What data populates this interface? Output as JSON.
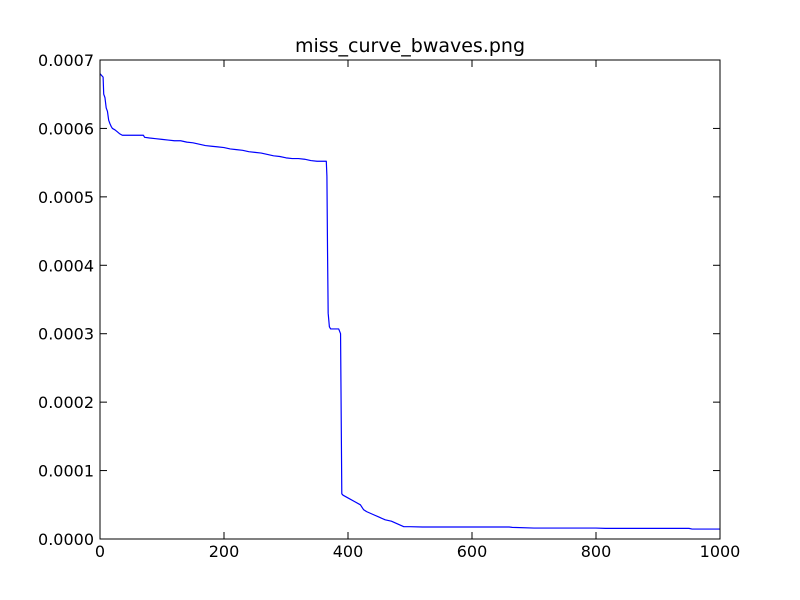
{
  "chart_data": {
    "type": "line",
    "title": "miss_curve_bwaves.png",
    "xlabel": "",
    "ylabel": "",
    "xlim": [
      0,
      1000
    ],
    "ylim": [
      0,
      0.0007
    ],
    "grid": false,
    "legend": "none",
    "x_ticks": [
      0,
      200,
      400,
      600,
      800,
      1000
    ],
    "x_tick_labels": [
      "0",
      "200",
      "400",
      "600",
      "800",
      "1000"
    ],
    "y_ticks": [
      0,
      0.0001,
      0.0002,
      0.0003,
      0.0004,
      0.0005,
      0.0006,
      0.0007
    ],
    "y_tick_labels": [
      "0.0000",
      "0.0001",
      "0.0002",
      "0.0003",
      "0.0004",
      "0.0005",
      "0.0006",
      "0.0007"
    ],
    "series": [
      {
        "color": "#0000ff",
        "x": [
          0,
          3,
          5,
          6,
          8,
          10,
          12,
          14,
          16,
          18,
          20,
          24,
          28,
          32,
          36,
          40,
          45,
          50,
          60,
          70,
          72,
          80,
          90,
          100,
          110,
          120,
          130,
          140,
          150,
          160,
          170,
          180,
          190,
          200,
          210,
          220,
          230,
          240,
          250,
          260,
          270,
          280,
          290,
          300,
          310,
          320,
          330,
          340,
          350,
          360,
          365,
          366,
          367,
          368,
          370,
          372,
          375,
          380,
          385,
          388,
          390,
          392,
          400,
          410,
          420,
          425,
          430,
          440,
          450,
          460,
          470,
          480,
          490,
          500,
          520,
          540,
          560,
          580,
          600,
          620,
          640,
          660,
          665,
          700,
          750,
          800,
          815,
          850,
          900,
          950,
          955,
          1000
        ],
        "y": [
          0.00068,
          0.000677,
          0.000675,
          0.00065,
          0.000645,
          0.00063,
          0.000625,
          0.000612,
          0.000607,
          0.000603,
          0.0006,
          0.000598,
          0.000595,
          0.000592,
          0.00059,
          0.00059,
          0.00059,
          0.00059,
          0.00059,
          0.00059,
          0.000587,
          0.000586,
          0.000585,
          0.000584,
          0.000583,
          0.000582,
          0.000582,
          0.00058,
          0.000579,
          0.000577,
          0.000575,
          0.000574,
          0.000573,
          0.000572,
          0.00057,
          0.000569,
          0.000568,
          0.000566,
          0.000565,
          0.000564,
          0.000562,
          0.00056,
          0.000559,
          0.000557,
          0.000556,
          0.000556,
          0.000555,
          0.000553,
          0.000552,
          0.000552,
          0.000552,
          0.00053,
          0.00042,
          0.00033,
          0.00031,
          0.000307,
          0.000307,
          0.000307,
          0.000307,
          0.0003,
          6.6e-05,
          6.4e-05,
          6e-05,
          5.5e-05,
          5e-05,
          4.3e-05,
          4e-05,
          3.6e-05,
          3.2e-05,
          2.8e-05,
          2.6e-05,
          2.2e-05,
          1.8e-05,
          1.8e-05,
          1.75e-05,
          1.75e-05,
          1.75e-05,
          1.75e-05,
          1.75e-05,
          1.75e-05,
          1.75e-05,
          1.75e-05,
          1.7e-05,
          1.6e-05,
          1.6e-05,
          1.6e-05,
          1.55e-05,
          1.55e-05,
          1.55e-05,
          1.55e-05,
          1.45e-05,
          1.45e-05
        ]
      }
    ]
  }
}
